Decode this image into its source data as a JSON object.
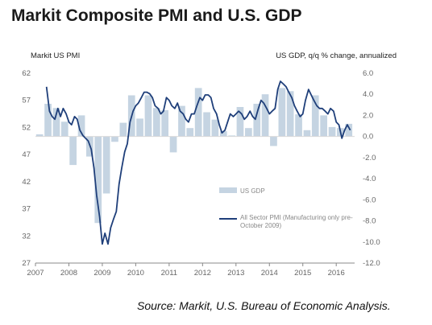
{
  "chart_data": {
    "type": "bar+line",
    "title": "Markit Composite PMI and U.S. GDP",
    "left_axis_label": "Markit US  PMI",
    "right_axis_label": "US GDP, q/q % change, annualized",
    "left_ylim": [
      27,
      62
    ],
    "left_ticks": [
      62,
      57,
      52,
      47,
      42,
      37,
      32,
      27
    ],
    "right_ylim": [
      -12.0,
      6.0
    ],
    "right_ticks": [
      "6.0",
      "4.0",
      "2.0",
      "0.0",
      "-2.0",
      "-4.0",
      "-6.0",
      "-8.0",
      "-10.0",
      "-12.0"
    ],
    "x_ticks": [
      "2007",
      "2008",
      "2009",
      "2010",
      "2011",
      "2012",
      "2013",
      "2014",
      "2015",
      "2016"
    ],
    "x_range": [
      2007.0,
      2016.55
    ],
    "legend_placement": "lower-right inside plot",
    "series": [
      {
        "name": "US GDP",
        "kind": "bar",
        "axis": "right",
        "color": "#c5d4e2",
        "x": [
          2007.0,
          2007.25,
          2007.5,
          2007.75,
          2008.0,
          2008.25,
          2008.5,
          2008.75,
          2009.0,
          2009.25,
          2009.5,
          2009.75,
          2010.0,
          2010.25,
          2010.5,
          2010.75,
          2011.0,
          2011.25,
          2011.5,
          2011.75,
          2012.0,
          2012.25,
          2012.5,
          2012.75,
          2013.0,
          2013.25,
          2013.5,
          2013.75,
          2014.0,
          2014.25,
          2014.5,
          2014.75,
          2015.0,
          2015.25,
          2015.5,
          2015.75,
          2016.0,
          2016.25
        ],
        "values": [
          0.2,
          3.1,
          2.7,
          1.4,
          -2.7,
          2.0,
          -1.9,
          -8.2,
          -5.4,
          -0.5,
          1.3,
          3.9,
          1.7,
          3.9,
          2.7,
          2.5,
          -1.5,
          2.9,
          0.8,
          4.6,
          2.3,
          1.6,
          0.5,
          0.1,
          2.8,
          0.8,
          3.1,
          4.0,
          -0.9,
          4.6,
          4.3,
          2.1,
          0.6,
          3.9,
          2.0,
          0.9,
          0.8,
          1.2
        ]
      },
      {
        "name": "All Sector PMI (Manufacturing only pre-October 2009)",
        "kind": "line",
        "axis": "left",
        "color": "#1f3f7a",
        "x": [
          2007.33,
          2007.42,
          2007.5,
          2007.58,
          2007.67,
          2007.75,
          2007.83,
          2007.92,
          2008.0,
          2008.08,
          2008.17,
          2008.25,
          2008.33,
          2008.42,
          2008.5,
          2008.58,
          2008.67,
          2008.75,
          2008.83,
          2008.92,
          2009.0,
          2009.08,
          2009.17,
          2009.25,
          2009.33,
          2009.42,
          2009.5,
          2009.58,
          2009.67,
          2009.75,
          2009.83,
          2009.92,
          2010.0,
          2010.08,
          2010.17,
          2010.25,
          2010.33,
          2010.42,
          2010.5,
          2010.58,
          2010.67,
          2010.75,
          2010.83,
          2010.92,
          2011.0,
          2011.08,
          2011.17,
          2011.25,
          2011.33,
          2011.42,
          2011.5,
          2011.58,
          2011.67,
          2011.75,
          2011.83,
          2011.92,
          2012.0,
          2012.08,
          2012.17,
          2012.25,
          2012.33,
          2012.42,
          2012.5,
          2012.58,
          2012.67,
          2012.75,
          2012.83,
          2012.92,
          2013.0,
          2013.08,
          2013.17,
          2013.25,
          2013.33,
          2013.42,
          2013.5,
          2013.58,
          2013.67,
          2013.75,
          2013.83,
          2013.92,
          2014.0,
          2014.08,
          2014.17,
          2014.25,
          2014.33,
          2014.42,
          2014.5,
          2014.58,
          2014.67,
          2014.75,
          2014.83,
          2014.92,
          2015.0,
          2015.08,
          2015.17,
          2015.25,
          2015.33,
          2015.42,
          2015.5,
          2015.58,
          2015.67,
          2015.75,
          2015.83,
          2015.92,
          2016.0,
          2016.08,
          2016.17,
          2016.25,
          2016.33,
          2016.42
        ],
        "values": [
          59.5,
          55.0,
          54.0,
          53.5,
          55.5,
          54.0,
          55.5,
          54.5,
          53.0,
          52.5,
          54.0,
          53.5,
          51.5,
          50.5,
          50.0,
          49.5,
          48.0,
          44.5,
          39.5,
          35.5,
          30.5,
          32.5,
          30.5,
          33.5,
          35.0,
          36.5,
          41.5,
          44.5,
          47.5,
          49.0,
          53.0,
          55.0,
          56.0,
          56.5,
          57.5,
          58.5,
          58.5,
          58.2,
          57.5,
          56.0,
          55.5,
          54.5,
          55.0,
          57.5,
          57.0,
          56.0,
          55.5,
          56.5,
          55.0,
          54.5,
          53.5,
          53.0,
          54.5,
          54.5,
          56.0,
          57.5,
          57.0,
          58.0,
          58.0,
          57.5,
          55.5,
          54.5,
          52.5,
          51.0,
          51.5,
          53.0,
          54.5,
          54.0,
          54.5,
          55.0,
          54.5,
          53.5,
          54.0,
          55.0,
          54.0,
          53.5,
          55.5,
          57.0,
          56.5,
          55.5,
          54.5,
          55.0,
          55.5,
          59.0,
          60.5,
          60.0,
          59.5,
          58.5,
          57.5,
          56.0,
          55.0,
          54.0,
          54.5,
          57.0,
          59.0,
          58.0,
          57.0,
          56.0,
          55.5,
          55.5,
          55.0,
          54.5,
          55.5,
          55.0,
          53.0,
          52.5,
          50.0,
          51.5,
          52.5,
          51.5
        ]
      }
    ]
  },
  "source_note": "Source: Markit, U.S. Bureau of Economic Analysis."
}
